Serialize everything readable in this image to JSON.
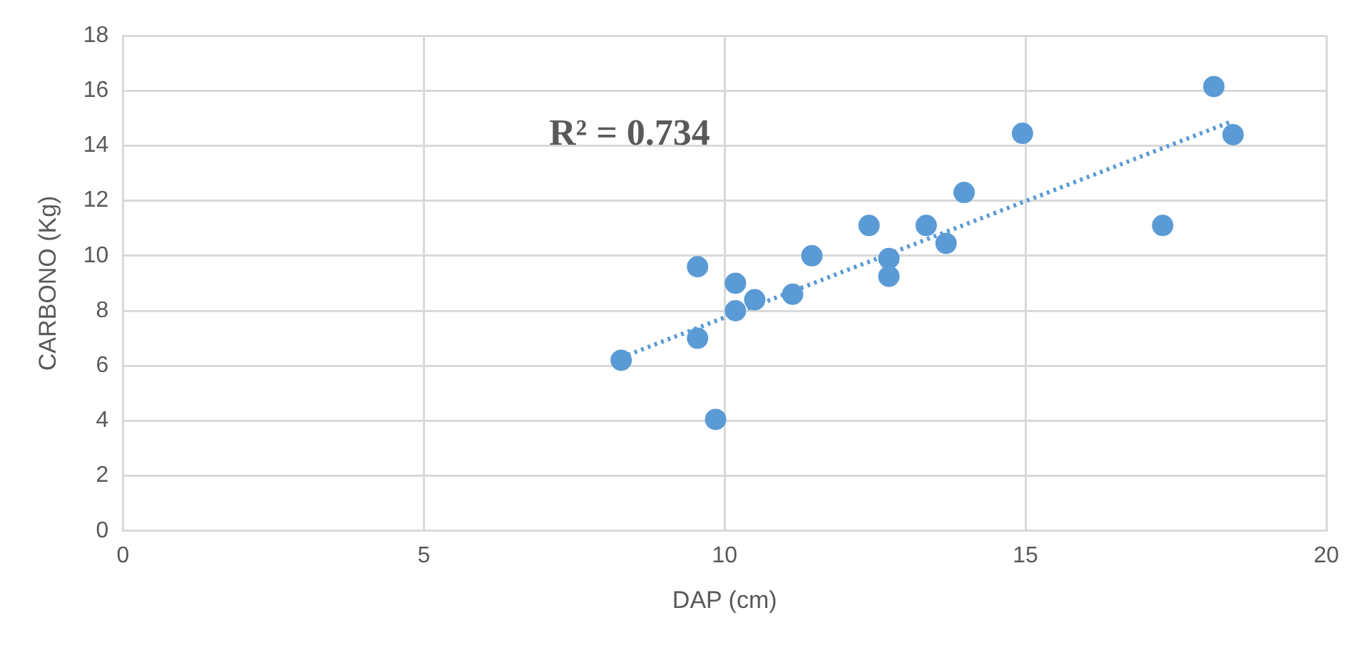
{
  "chart_data": {
    "type": "scatter",
    "xlabel": "DAP (cm)",
    "ylabel": "CARBONO (Kg)",
    "annotations": [
      "R² = 0.734"
    ],
    "xlim": [
      0,
      20
    ],
    "xticks": [
      0,
      5,
      10,
      15,
      20
    ],
    "ylim": [
      0,
      18
    ],
    "yticks": [
      0,
      2,
      4,
      6,
      8,
      10,
      12,
      14,
      16,
      18
    ],
    "grid": true,
    "legend": false,
    "marker": "circle",
    "series": [
      {
        "color": "#5b9bd5",
        "x": [
          8.28,
          9.55,
          9.55,
          9.85,
          10.18,
          10.18,
          10.5,
          11.13,
          11.45,
          12.4,
          12.73,
          12.73,
          13.35,
          13.68,
          13.98,
          14.95,
          17.28,
          18.13,
          18.45
        ],
        "values": [
          6.2,
          9.6,
          7.0,
          4.05,
          9.0,
          8.0,
          8.4,
          8.6,
          10.0,
          11.1,
          9.9,
          9.25,
          11.1,
          10.45,
          12.3,
          14.45,
          11.1,
          16.15,
          14.4
        ]
      },
      {
        "type": "line",
        "color": "#5b9bd5",
        "line_style": "dotted",
        "marker": "none",
        "x": [
          8.28,
          18.45
        ],
        "values": [
          6.3,
          14.9
        ]
      }
    ]
  }
}
